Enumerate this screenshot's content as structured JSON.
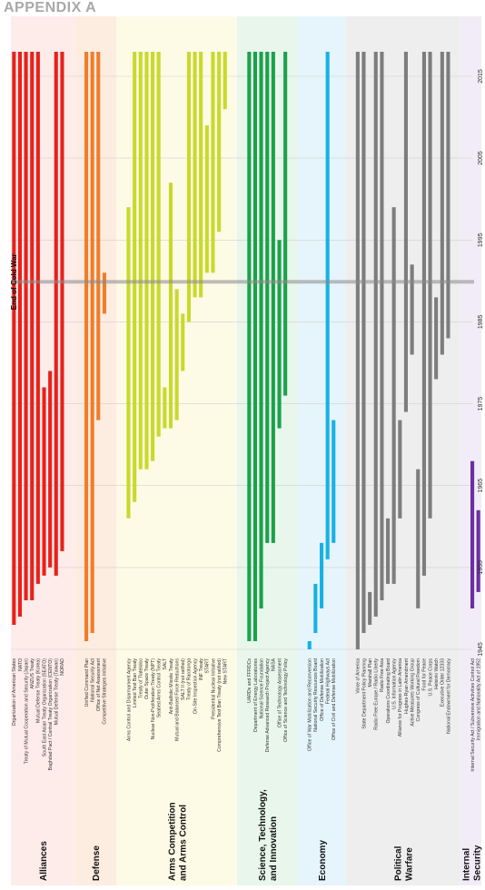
{
  "page": {
    "title": "APPENDIX A"
  },
  "chart_data": {
    "type": "bar",
    "orientation": "horizontal timeline (rotated)",
    "time_axis": {
      "min": 1945,
      "max": 2018,
      "ticks": [
        1945,
        1955,
        1965,
        1975,
        1985,
        1995,
        2005,
        2015
      ]
    },
    "annotation": {
      "label": "End of Cold War",
      "year": 1989.9
    },
    "groups": [
      {
        "name": "Alliances",
        "color": "#e8211b",
        "bg": "#fdecea",
        "rows": [
          {
            "label": "Organization of American States",
            "start": 1948,
            "end": 2018
          },
          {
            "label": "NATO",
            "start": 1949,
            "end": 2018
          },
          {
            "label": "Treaty of Mutual Cooperation and Security (Japan)",
            "start": 1951,
            "end": 2018
          },
          {
            "label": "ANZUS Treaty",
            "start": 1951,
            "end": 2018
          },
          {
            "label": "Mutual Defense Treaty (Korea)",
            "start": 1953,
            "end": 2018
          },
          {
            "label": "South East Asian Treaty Organization (SEATO)",
            "start": 1954,
            "end": 1977
          },
          {
            "label": "Baghdad Pact / Central Treaty Organization (CENTO)",
            "start": 1955,
            "end": 1979
          },
          {
            "label": "Mutual Defense Treaty (Taiwan)",
            "start": 1954,
            "end": 2018
          },
          {
            "label": "NORAD",
            "start": 1957,
            "end": 2018
          }
        ]
      },
      {
        "name": "Defense",
        "color": "#ef7d2b",
        "bg": "#fdece0",
        "rows": [
          {
            "label": "Unified Command Plan",
            "start": 1946,
            "end": 2018
          },
          {
            "label": "National Security Act",
            "start": 1947,
            "end": 2018
          },
          {
            "label": "Office of Net Assessment",
            "start": 1973,
            "end": 2018
          },
          {
            "label": "Competitive Strategies Initiative",
            "start": 1986,
            "end": 1991
          }
        ]
      },
      {
        "name": "Arms Competition and Arms Control",
        "color": "#c9d92b",
        "bg": "#fdfbe6",
        "rows": [
          {
            "label": "Arms Control and Disarmament Agency",
            "start": 1961,
            "end": 1999
          },
          {
            "label": "Limited Test Ban Treaty",
            "start": 1963,
            "end": 2018
          },
          {
            "label": "Treaty of Tlatelolco",
            "start": 1967,
            "end": 2018
          },
          {
            "label": "Outer Space Treaty",
            "start": 1967,
            "end": 2018
          },
          {
            "label": "Nuclear Non-Proliferation Treaty (NPT)",
            "start": 1968,
            "end": 2018
          },
          {
            "label": "Seabed Arms Control Treaty",
            "start": 1971,
            "end": 2018
          },
          {
            "label": "SALT",
            "start": 1972,
            "end": 1977
          },
          {
            "label": "Anti-Ballistic Missile Treaty",
            "start": 1972,
            "end": 2002
          },
          {
            "label": "Mutual and Balanced Force Reductions",
            "start": 1973,
            "end": 1989
          },
          {
            "label": "SALT II (not ratified)",
            "start": 1979,
            "end": 1986
          },
          {
            "label": "Treaty of Rarotonga",
            "start": 1985,
            "end": 2018
          },
          {
            "label": "On-Site Inspection Agency",
            "start": 1988,
            "end": 2018
          },
          {
            "label": "INF Treaty",
            "start": 1988,
            "end": 2018
          },
          {
            "label": "START",
            "start": 1991,
            "end": 2009
          },
          {
            "label": "Presidential Nuclear Initiative",
            "start": 1991,
            "end": 2018
          },
          {
            "label": "Comprehensive Test Ban Treaty (not ratified)",
            "start": 1996,
            "end": 2018
          },
          {
            "label": "New START",
            "start": 2011,
            "end": 2018
          }
        ]
      },
      {
        "name": "Science, Technology, and Innovation",
        "color": "#1aa24a",
        "bg": "#e8f6ec",
        "rows": [
          {
            "label": "UARDs and FFRDCs",
            "start": 1946,
            "end": 2018
          },
          {
            "label": "Department of Energy Laboratories",
            "start": 1946,
            "end": 2018
          },
          {
            "label": "National Science Foundation",
            "start": 1950,
            "end": 2018
          },
          {
            "label": "Defense Advanced Research Project Agency",
            "start": 1958,
            "end": 2018
          },
          {
            "label": "NASA",
            "start": 1958,
            "end": 2018
          },
          {
            "label": "Office of Technology Assessment",
            "start": 1972,
            "end": 1995
          },
          {
            "label": "Office of Science and Technology Policy",
            "start": 1976,
            "end": 2018
          }
        ]
      },
      {
        "name": "Economy",
        "color": "#16b2e4",
        "bg": "#e6f5fb",
        "rows": [
          {
            "label": "Office of War Mobilization and Reconversion",
            "start": 1944,
            "end": 1946
          },
          {
            "label": "National Security Resources Board",
            "start": 1947,
            "end": 1953
          },
          {
            "label": "Office of Defense Mobilization",
            "start": 1950,
            "end": 1958
          },
          {
            "label": "Federal Highways Act",
            "start": 1956,
            "end": 2018
          },
          {
            "label": "Office of Civil and Defense Mobilization",
            "start": 1958,
            "end": 1973
          }
        ]
      },
      {
        "name": "Political Warfare",
        "color": "#7d7d7d",
        "bg": "#eeeeef",
        "rows": [
          {
            "label": "Voice of America",
            "start": 1942,
            "end": 2018
          },
          {
            "label": "State Department Policy Planning",
            "start": 1947,
            "end": 2018
          },
          {
            "label": "Marshall Plan",
            "start": 1948,
            "end": 1952
          },
          {
            "label": "Radio Free Europe / Radio Liberty",
            "start": 1949,
            "end": 2018
          },
          {
            "label": "Radio Free Asia",
            "start": 1951,
            "end": 2018
          },
          {
            "label": "Operations Coordinating Board",
            "start": 1953,
            "end": 1961
          },
          {
            "label": "U.S. Information Agency",
            "start": 1953,
            "end": 1999
          },
          {
            "label": "Alliance for Progress in Latin America",
            "start": 1961,
            "end": 1973
          },
          {
            "label": "Hughes-Ryan Amendment",
            "start": 1974,
            "end": 2018
          },
          {
            "label": "Active Measures Working Group",
            "start": 1981,
            "end": 1992
          },
          {
            "label": "Congress of Cultural Freedom",
            "start": 1950,
            "end": 1967
          },
          {
            "label": "Food for Peace",
            "start": 1954,
            "end": 2018
          },
          {
            "label": "U.S. Peace Corps",
            "start": 1961,
            "end": 2018
          },
          {
            "label": "Helsinki Watch",
            "start": 1978,
            "end": 1988
          },
          {
            "label": "Executive Order 12333",
            "start": 1981,
            "end": 2018
          },
          {
            "label": "National Endowment for Democracy",
            "start": 1983,
            "end": 2018
          }
        ]
      },
      {
        "name": "Internal Security",
        "color": "#6b2fa3",
        "bg": "#f2ecf8",
        "rows": [
          {
            "label": "Internal Security Act / Subversive Activities Control Act",
            "start": 1950,
            "end": 1968
          },
          {
            "label": "Immigration and Nationality Act of 1952",
            "start": 1952,
            "end": 1962
          }
        ]
      }
    ]
  }
}
